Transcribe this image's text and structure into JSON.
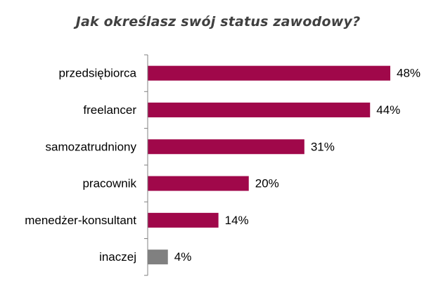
{
  "chart_data": {
    "type": "bar",
    "orientation": "horizontal",
    "title": "Jak określasz swój status zawodowy?",
    "categories": [
      "przedsiębiorca",
      "freelancer",
      "samozatrudniony",
      "pracownik",
      "menedżer-konsultant",
      "inaczej"
    ],
    "values": [
      48,
      44,
      31,
      20,
      14,
      4
    ],
    "value_labels": [
      "48%",
      "44%",
      "31%",
      "20%",
      "14%",
      "4%"
    ],
    "unit": "%",
    "xlim": [
      0,
      48
    ],
    "grid": false,
    "legend": "none",
    "colors": [
      "#a0084a",
      "#a0084a",
      "#a0084a",
      "#a0084a",
      "#a0084a",
      "#808080"
    ]
  }
}
